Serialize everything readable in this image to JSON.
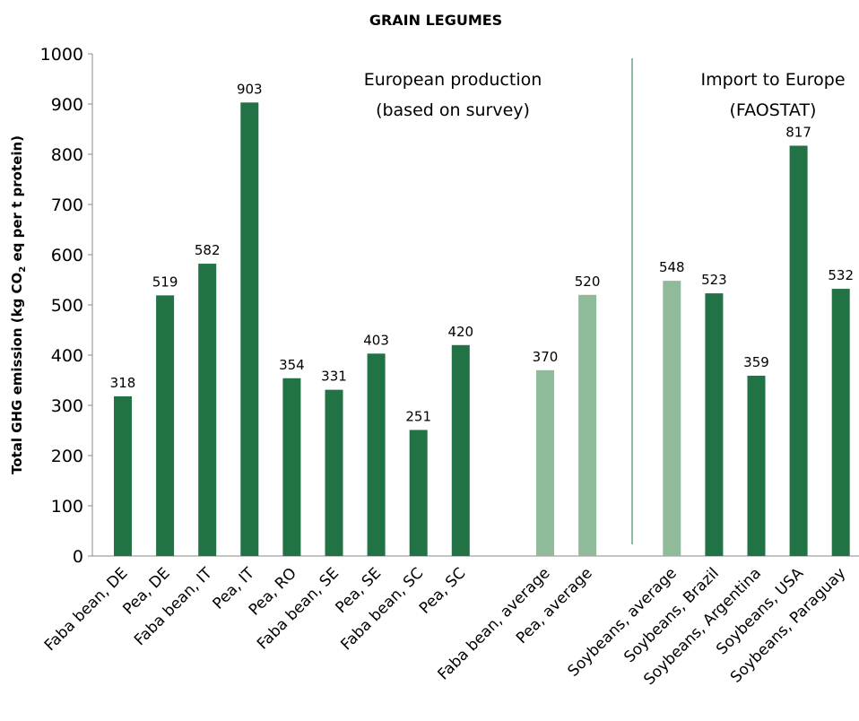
{
  "chart_data": {
    "type": "bar",
    "title": "GRAIN LEGUMES",
    "y_label": [
      "Total GHG emission  (kg CO",
      "2",
      " eq per t protein)"
    ],
    "annotations": [
      [
        "European production",
        "(based on survey)"
      ],
      [
        "Import to Europe",
        "(FAOSTAT)"
      ]
    ],
    "categories": [
      "Faba bean, DE",
      "Pea, DE",
      "Faba bean, IT",
      "Pea, IT",
      "Pea, RO",
      "Faba bean, SE",
      "Pea, SE",
      "Faba bean, SC",
      "Pea, SC",
      null,
      "Faba bean, average",
      "Pea, average",
      null,
      "Soybeans, average",
      "Soybeans, Brazil",
      "Soybeans, Argentina",
      "Soybeans, USA",
      "Soybeans, Paraguay"
    ],
    "values": [
      318,
      519,
      582,
      903,
      354,
      331,
      403,
      251,
      420,
      null,
      370,
      520,
      null,
      548,
      523,
      359,
      817,
      532
    ],
    "colors": [
      "#217244",
      "#217244",
      "#217244",
      "#217244",
      "#217244",
      "#217244",
      "#217244",
      "#217244",
      "#217244",
      null,
      "#8fbb9a",
      "#8fbb9a",
      null,
      "#8fbb9a",
      "#217244",
      "#217244",
      "#217244",
      "#217244"
    ],
    "ylim": [
      0,
      1000
    ],
    "yticks": [
      0,
      100,
      200,
      300,
      400,
      500,
      600,
      700,
      800,
      900,
      1000
    ],
    "grid": false
  }
}
